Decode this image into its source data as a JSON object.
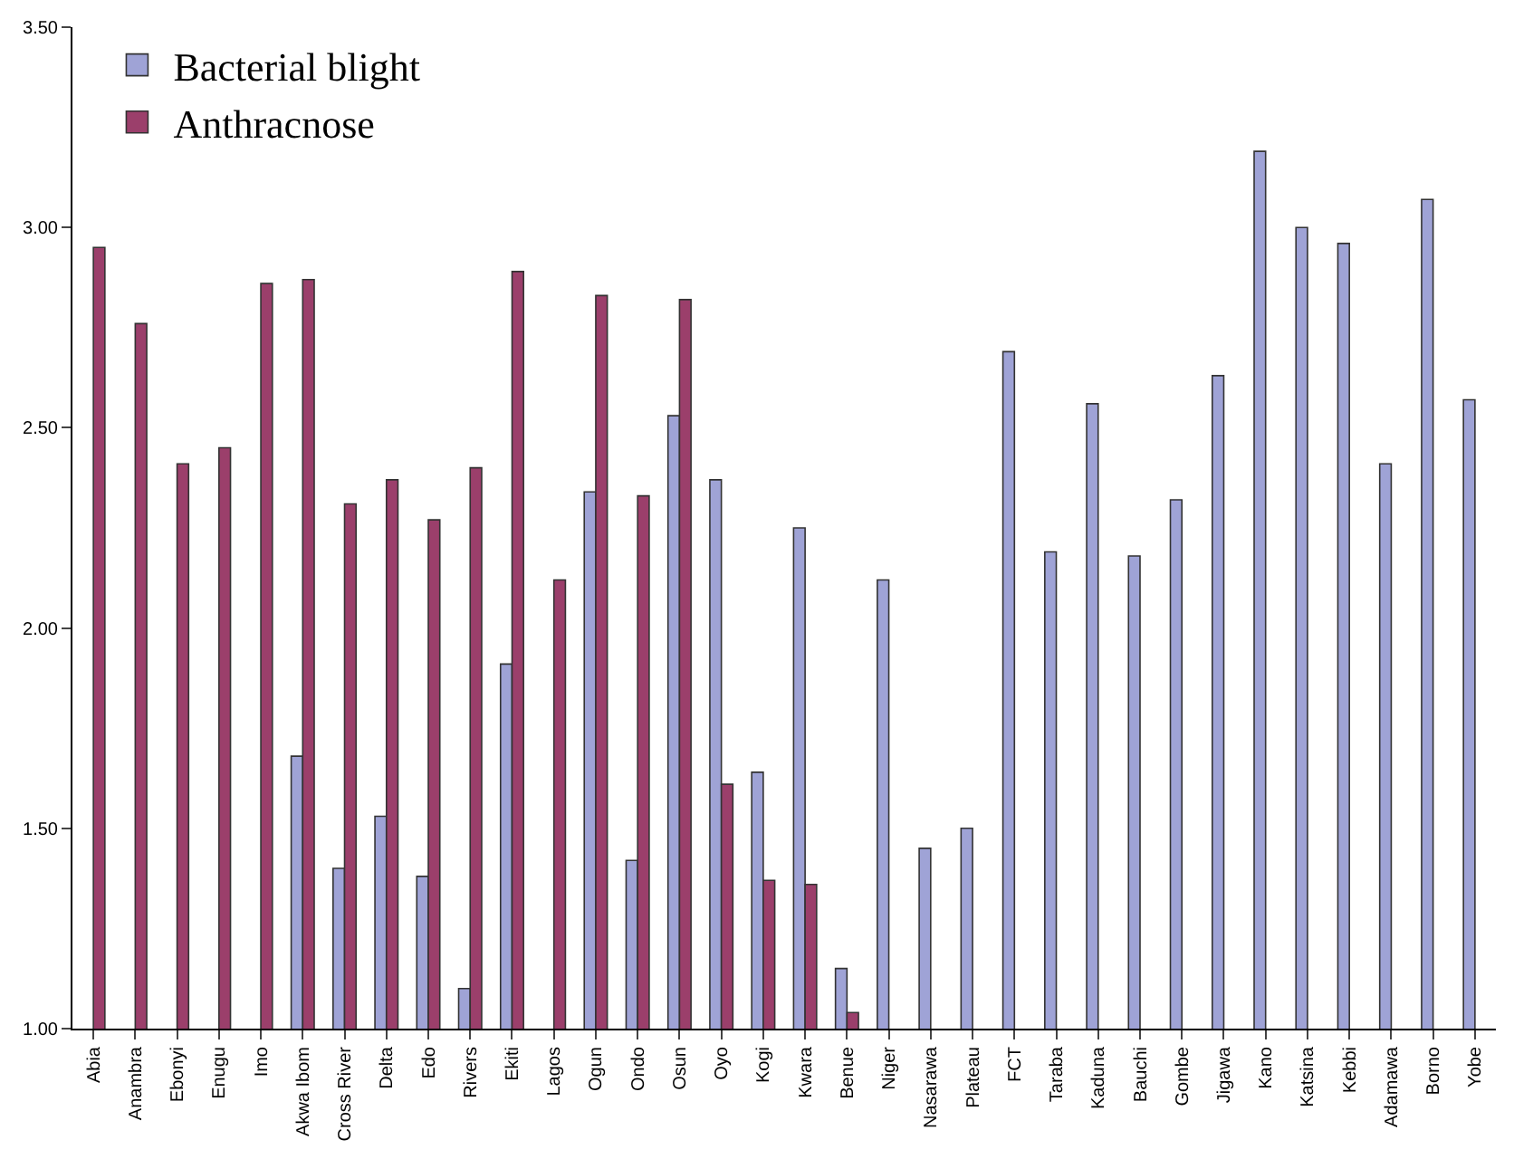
{
  "chart_data": {
    "type": "bar",
    "categories": [
      "Abia",
      "Anambra",
      "Ebonyi",
      "Enugu",
      "Imo",
      "Akwa Ibom",
      "Cross River",
      "Delta",
      "Edo",
      "Rivers",
      "Ekiti",
      "Lagos",
      "Ogun",
      "Ondo",
      "Osun",
      "Oyo",
      "Kogi",
      "Kwara",
      "Benue",
      "Niger",
      "Nasarawa",
      "Plateau",
      "FCT",
      "Taraba",
      "Kaduna",
      "Bauchi",
      "Gombe",
      "Jigawa",
      "Kano",
      "Katsina",
      "Kebbi",
      "Adamawa",
      "Borno",
      "Yobe"
    ],
    "series": [
      {
        "name": "Bacterial blight",
        "color": "#9fa3d6",
        "values": [
          null,
          null,
          null,
          null,
          null,
          1.68,
          1.4,
          1.53,
          1.38,
          1.1,
          1.91,
          null,
          2.34,
          1.42,
          2.53,
          2.37,
          1.64,
          2.25,
          1.15,
          2.12,
          1.45,
          1.5,
          2.69,
          2.19,
          2.56,
          2.18,
          2.32,
          2.63,
          3.19,
          3.0,
          2.96,
          2.41,
          3.07,
          2.57
        ]
      },
      {
        "name": "Anthracnose",
        "color": "#9b3f6b",
        "values": [
          2.95,
          2.76,
          2.41,
          2.45,
          2.86,
          2.87,
          2.31,
          2.37,
          2.27,
          2.4,
          2.89,
          2.12,
          2.83,
          2.33,
          2.82,
          1.61,
          1.37,
          1.36,
          1.04,
          null,
          null,
          null,
          null,
          null,
          null,
          null,
          null,
          null,
          null,
          null,
          null,
          null,
          null,
          null
        ]
      }
    ],
    "ylim": [
      1,
      3.5
    ],
    "yticks": [
      {
        "value": 1,
        "label": "1.00"
      },
      {
        "value": 1.5,
        "label": "1.50"
      },
      {
        "value": 2,
        "label": "2.00"
      },
      {
        "value": 2.5,
        "label": "2.50"
      },
      {
        "value": 3,
        "label": "3.00"
      },
      {
        "value": 3.5,
        "label": "3.50"
      }
    ],
    "legend": "top left"
  }
}
